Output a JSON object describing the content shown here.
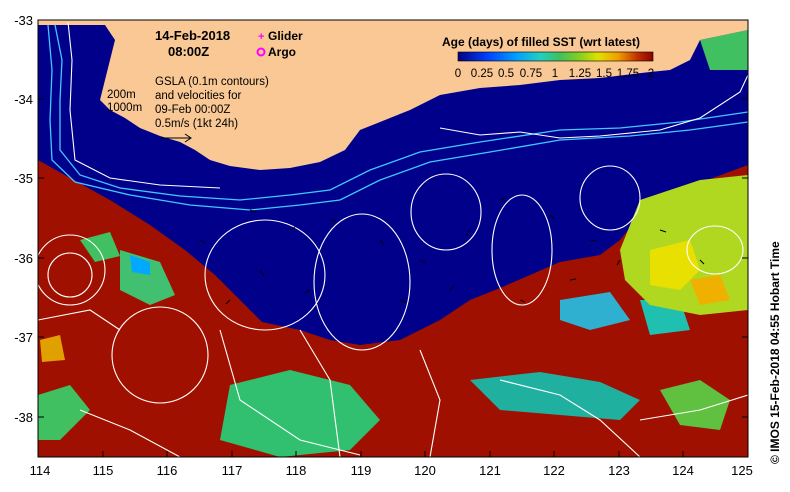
{
  "header": {
    "date": "14-Feb-2018",
    "time": "08:00Z"
  },
  "legend": {
    "glider_label": "Glider",
    "argo_label": "Argo",
    "glider_color": "#ff00ff",
    "argo_color": "#ff00ff"
  },
  "annotation": {
    "line1": "GSLA (0.1m contours)",
    "line2": "and velocities for",
    "line3": "09-Feb 00:00Z",
    "line4": "0.5m/s (1kt 24h)",
    "iso_200": "200m",
    "iso_1000": "1000m"
  },
  "colorbar": {
    "title": "Age (days) of filled SST (wrt latest)",
    "tick_labels": [
      "0",
      "0.25",
      "0.5",
      "0.75",
      "1",
      "1.25",
      "1.5",
      "1.75",
      "2"
    ],
    "colors": [
      "#000080",
      "#0040ff",
      "#00a0ff",
      "#20d0c0",
      "#40c060",
      "#80d020",
      "#e0e000",
      "#f0a000",
      "#c03000",
      "#8b0000"
    ]
  },
  "axes": {
    "x_ticks": [
      "114",
      "115",
      "116",
      "117",
      "118",
      "119",
      "120",
      "121",
      "122",
      "123",
      "124",
      "125"
    ],
    "y_ticks": [
      "-33",
      "-34",
      "-35",
      "-36",
      "-37",
      "-38"
    ]
  },
  "credit": "© IMOS 15-Feb-2018 04:55 Hobart Time",
  "colors": {
    "land": "#fac894",
    "ocean_recent": "#00008b",
    "stale_sst": "#a01000",
    "bathymetry": "#40c8ff"
  }
}
